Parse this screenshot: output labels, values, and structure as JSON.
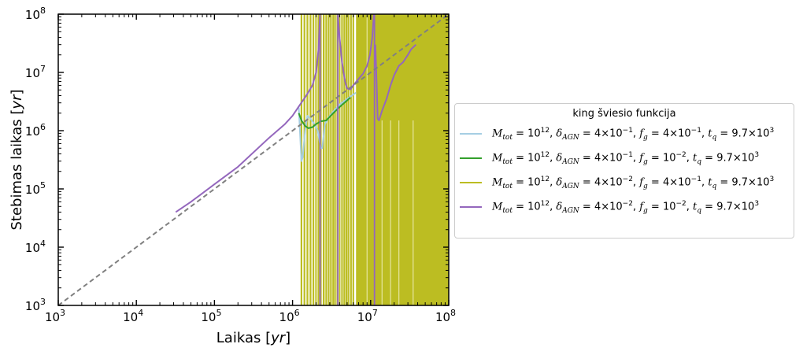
{
  "chart_data": {
    "type": "line",
    "title": "",
    "xlabel": "Laikas [yr]",
    "ylabel": "Stebimas laikas [yr]",
    "xscale": "log",
    "yscale": "log",
    "xlim": [
      1000,
      100000000
    ],
    "ylim": [
      1000,
      100000000
    ],
    "x_ticks": [
      {
        "base": "10",
        "exp": "3"
      },
      {
        "base": "10",
        "exp": "4"
      },
      {
        "base": "10",
        "exp": "5"
      },
      {
        "base": "10",
        "exp": "6"
      },
      {
        "base": "10",
        "exp": "7"
      },
      {
        "base": "10",
        "exp": "8"
      }
    ],
    "y_ticks": [
      {
        "base": "10",
        "exp": "3"
      },
      {
        "base": "10",
        "exp": "4"
      },
      {
        "base": "10",
        "exp": "5"
      },
      {
        "base": "10",
        "exp": "6"
      },
      {
        "base": "10",
        "exp": "7"
      },
      {
        "base": "10",
        "exp": "8"
      }
    ],
    "grid": false,
    "legend": {
      "title": "king šviesio funkcija",
      "placement": "outside right",
      "entries": [
        {
          "color": "#a6cee3",
          "M": "10",
          "M_exp": "12",
          "d": "4×10",
          "d_exp": "−1",
          "f": "4×10",
          "f_exp": "−1",
          "t": "9.7×10",
          "t_exp": "3"
        },
        {
          "color": "#33a02c",
          "M": "10",
          "M_exp": "12",
          "d": "4×10",
          "d_exp": "−1",
          "f": "10",
          "f_exp": "−2",
          "t": "9.7×10",
          "t_exp": "3"
        },
        {
          "color": "#bcbd22",
          "M": "10",
          "M_exp": "12",
          "d": "4×10",
          "d_exp": "−2",
          "f": "4×10",
          "f_exp": "−1",
          "t": "9.7×10",
          "t_exp": "3"
        },
        {
          "color": "#9467bd",
          "M": "10",
          "M_exp": "12",
          "d": "4×10",
          "d_exp": "−2",
          "f": "10",
          "f_exp": "−2",
          "t": "9.7×10",
          "t_exp": "3"
        }
      ]
    },
    "reference_line": {
      "style": "dashed",
      "color": "#808080",
      "x": [
        1000,
        100000000
      ],
      "y": [
        1000,
        100000000
      ]
    },
    "series": [
      {
        "color": "#a6cee3",
        "points": [
          [
            1200000,
            2500000
          ],
          [
            1300000,
            300000
          ],
          [
            1350000,
            350000
          ],
          [
            1450000,
            1000000
          ],
          [
            1550000,
            1800000
          ],
          [
            1700000,
            1600000
          ],
          [
            1900000,
            1300000
          ],
          [
            2100000,
            1000000
          ],
          [
            2300000,
            500000
          ],
          [
            2400000,
            500000
          ],
          [
            2600000,
            1300000
          ],
          [
            3000000,
            1800000
          ],
          [
            3500000,
            2300000
          ],
          [
            4000000,
            2800000
          ],
          [
            5000000,
            3500000
          ],
          [
            6500000,
            4500000
          ]
        ]
      },
      {
        "color": "#33a02c",
        "points": [
          [
            1200000,
            2000000
          ],
          [
            1300000,
            1500000
          ],
          [
            1450000,
            1200000
          ],
          [
            1600000,
            1100000
          ],
          [
            1800000,
            1150000
          ],
          [
            2000000,
            1300000
          ],
          [
            2300000,
            1450000
          ],
          [
            2700000,
            1500000
          ],
          [
            3200000,
            1900000
          ],
          [
            3700000,
            2300000
          ],
          [
            4200000,
            2700000
          ],
          [
            5000000,
            3300000
          ],
          [
            5500000,
            3700000
          ]
        ]
      },
      {
        "color": "#9467bd",
        "points": [
          [
            32000,
            40000
          ],
          [
            50000,
            60000
          ],
          [
            100000,
            120000
          ],
          [
            200000,
            240000
          ],
          [
            500000,
            750000
          ],
          [
            800000,
            1300000
          ],
          [
            1000000,
            1800000
          ],
          [
            1200000,
            2600000
          ],
          [
            1500000,
            4000000
          ],
          [
            1800000,
            6000000
          ],
          [
            2000000,
            10000000
          ],
          [
            2150000,
            25000000
          ],
          [
            2250000,
            100000000
          ],
          [
            null,
            null
          ],
          [
            3800000,
            100000000
          ],
          [
            4000000,
            40000000
          ],
          [
            4300000,
            15000000
          ],
          [
            4700000,
            7000000
          ],
          [
            5000000,
            5300000
          ],
          [
            5500000,
            5100000
          ],
          [
            6000000,
            6000000
          ],
          [
            7000000,
            7700000
          ],
          [
            8000000,
            9500000
          ],
          [
            9000000,
            13000000
          ],
          [
            9800000,
            20000000
          ],
          [
            10500000,
            40000000
          ],
          [
            11000000,
            100000000
          ],
          [
            null,
            null
          ],
          [
            11500000,
            30000000
          ],
          [
            12000000,
            5000000
          ],
          [
            12300000,
            1600000
          ],
          [
            12800000,
            1500000
          ],
          [
            14000000,
            2200000
          ],
          [
            16000000,
            3500000
          ],
          [
            18000000,
            6000000
          ],
          [
            20000000,
            9000000
          ],
          [
            23000000,
            13000000
          ],
          [
            26000000,
            15000000
          ],
          [
            30000000,
            20000000
          ],
          [
            33000000,
            25000000
          ],
          [
            38000000,
            30000000
          ]
        ]
      }
    ]
  }
}
